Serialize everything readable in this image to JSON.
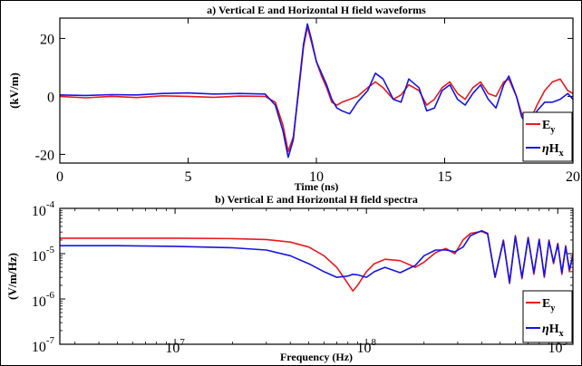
{
  "figure": {
    "border_color": "#000000"
  },
  "chart_data": [
    {
      "type": "line",
      "title": "a) Vertical E and Horizontal H field waveforms",
      "xlabel": "Time (ns)",
      "ylabel": "(kV/m)",
      "xlim": [
        0,
        20
      ],
      "ylim": [
        -23,
        27
      ],
      "xticks": [
        0,
        5,
        10,
        15,
        20
      ],
      "xtick_labels": [
        "0",
        "5",
        "10",
        "15",
        "20"
      ],
      "yticks": [
        -20,
        0,
        20
      ],
      "ytick_labels": [
        "-20",
        "0",
        "20"
      ],
      "grid": false,
      "legend_position": "bottom-right",
      "series": [
        {
          "name": "E_y",
          "color": "#e8191f",
          "x": [
            0,
            1,
            2,
            3,
            4,
            5,
            6,
            7,
            8,
            8.4,
            8.7,
            8.9,
            9.1,
            9.3,
            9.5,
            9.65,
            9.8,
            10.0,
            10.2,
            10.4,
            10.6,
            10.8,
            11.0,
            11.3,
            11.6,
            12.0,
            12.3,
            12.6,
            13.0,
            13.3,
            13.6,
            14.0,
            14.3,
            14.6,
            14.9,
            15.2,
            15.5,
            15.8,
            16.1,
            16.4,
            16.7,
            17.0,
            17.3,
            17.5,
            17.8,
            18.0,
            18.3,
            18.6,
            18.9,
            19.2,
            19.5,
            19.8,
            20.0
          ],
          "y": [
            0,
            -0.5,
            0,
            -0.4,
            0.2,
            0,
            -0.3,
            0.1,
            0,
            -2,
            -10,
            -19,
            -14,
            1,
            17,
            24,
            19,
            12,
            7,
            3,
            -2,
            -3,
            -2,
            -1,
            0,
            3,
            5,
            3,
            -1,
            0.5,
            4,
            2,
            -3,
            -1,
            3,
            5,
            1,
            -1,
            3,
            5,
            1,
            0,
            5,
            6,
            0,
            -6,
            -9,
            -3,
            2,
            5,
            6,
            2,
            1
          ]
        },
        {
          "name": "ηH_x",
          "color": "#1414e6",
          "x": [
            0,
            1,
            2,
            3,
            4,
            5,
            6,
            7,
            8,
            8.4,
            8.7,
            8.9,
            9.1,
            9.3,
            9.5,
            9.65,
            9.8,
            10.0,
            10.2,
            10.4,
            10.6,
            10.8,
            11.0,
            11.3,
            11.6,
            12.0,
            12.3,
            12.6,
            13.0,
            13.3,
            13.6,
            14.0,
            14.3,
            14.6,
            14.9,
            15.2,
            15.5,
            15.8,
            16.1,
            16.4,
            16.7,
            17.0,
            17.3,
            17.5,
            17.8,
            18.0,
            18.3,
            18.6,
            18.9,
            19.2,
            19.5,
            19.8,
            20.0
          ],
          "y": [
            0.5,
            0.3,
            0.6,
            0.5,
            1,
            1.2,
            0.8,
            1,
            0.8,
            -3,
            -12,
            -21,
            -15,
            2,
            18,
            25,
            20,
            12,
            8,
            4,
            -1,
            -4,
            -5,
            -6,
            -2,
            2,
            8,
            6,
            -1,
            -2,
            6,
            3,
            -5,
            -4,
            2,
            4,
            -1,
            -3,
            1,
            4,
            -1,
            -4,
            4,
            7,
            0,
            -7,
            -11,
            -5,
            -2,
            -2,
            -1,
            1,
            -1
          ]
        }
      ]
    },
    {
      "type": "line",
      "title": "b) Vertical E and Horizontal H field spectra",
      "xlabel": "Frequency (Hz)",
      "ylabel": "(V/m/Hz)",
      "xscale": "log",
      "yscale": "log",
      "xlim": [
        2500000,
        1200000000
      ],
      "ylim": [
        1e-07,
        0.0001
      ],
      "xticks": [
        10000000,
        100000000,
        1000000000
      ],
      "xtick_labels": [
        [
          "10",
          "7"
        ],
        [
          "10",
          "8"
        ],
        [
          "10",
          "9"
        ]
      ],
      "yticks": [
        0.0001,
        1e-05,
        1e-06,
        1e-07
      ],
      "ytick_labels": [
        [
          "10",
          "-4"
        ],
        [
          "10",
          "-5"
        ],
        [
          "10",
          "-6"
        ],
        [
          "10",
          "-7"
        ]
      ],
      "grid": false,
      "legend_position": "bottom-right",
      "series": [
        {
          "name": "E_y",
          "color": "#e8191f",
          "x": [
            2500000,
            5000000,
            10000000,
            20000000,
            30000000,
            40000000,
            50000000,
            60000000,
            70000000,
            80000000,
            85000000,
            90000000,
            100000000,
            110000000,
            125000000,
            150000000,
            180000000,
            200000000,
            230000000,
            260000000,
            290000000,
            320000000,
            350000000,
            400000000,
            430000000,
            470000000,
            520000000,
            560000000,
            600000000,
            650000000,
            700000000,
            750000000,
            800000000,
            850000000,
            900000000,
            950000000,
            1000000000,
            1050000000,
            1100000000,
            1150000000,
            1200000000
          ],
          "y": [
            2.2e-05,
            2.2e-05,
            2.2e-05,
            2.15e-05,
            2.05e-05,
            1.8e-05,
            1.4e-05,
            9e-06,
            5e-06,
            2.2e-06,
            1.5e-06,
            2e-06,
            4e-06,
            6e-06,
            7.5e-06,
            7e-06,
            5e-06,
            6.5e-06,
            1.05e-05,
            1.3e-05,
            1e-05,
            2e-05,
            2.8e-05,
            3.1e-05,
            2.7e-05,
            3e-06,
            2e-05,
            2.2e-06,
            2.5e-05,
            2.8e-06,
            2.3e-05,
            3.5e-06,
            2.1e-05,
            3e-06,
            2e-05,
            6e-06,
            1.7e-05,
            3.5e-06,
            1.5e-05,
            4e-06,
            1e-05
          ]
        },
        {
          "name": "ηH_x",
          "color": "#1414e6",
          "x": [
            2500000,
            5000000,
            10000000,
            20000000,
            30000000,
            40000000,
            50000000,
            60000000,
            70000000,
            80000000,
            85000000,
            90000000,
            100000000,
            110000000,
            125000000,
            150000000,
            180000000,
            200000000,
            230000000,
            260000000,
            290000000,
            320000000,
            350000000,
            400000000,
            430000000,
            470000000,
            520000000,
            560000000,
            600000000,
            650000000,
            700000000,
            750000000,
            800000000,
            850000000,
            900000000,
            950000000,
            1000000000,
            1050000000,
            1100000000,
            1150000000,
            1200000000
          ],
          "y": [
            1.5e-05,
            1.5e-05,
            1.45e-05,
            1.35e-05,
            1.2e-05,
            9e-06,
            6e-06,
            4e-06,
            3e-06,
            3.2e-06,
            3.5e-06,
            3.4e-06,
            3e-06,
            4e-06,
            5e-06,
            3.8e-06,
            5.5e-06,
            9e-06,
            1.2e-05,
            1.2e-05,
            1.1e-05,
            1.4e-05,
            2.5e-05,
            3.2e-05,
            2.8e-05,
            3e-06,
            1.9e-05,
            2.3e-06,
            2.4e-05,
            3e-06,
            2.2e-05,
            3.8e-06,
            2e-05,
            3.2e-06,
            1.9e-05,
            6.5e-06,
            1.6e-05,
            3.8e-06,
            1.4e-05,
            4.5e-06,
            9e-06
          ]
        }
      ]
    }
  ]
}
